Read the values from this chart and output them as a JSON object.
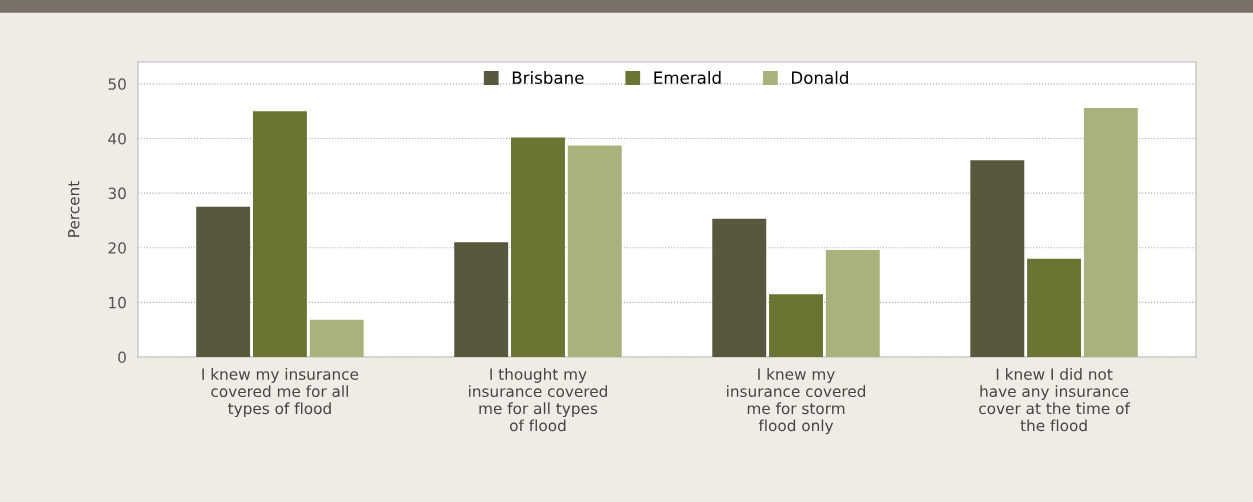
{
  "chart_data": {
    "type": "bar",
    "ylabel": "Percent",
    "categories": [
      "I knew my insurance\ncovered me for all\ntypes of flood",
      "I thought my\ninsurance covered\nme for all types\nof flood",
      "I knew my\ninsurance covered\nme for storm\nflood only",
      "I knew I did not\nhave any insurance\ncover at the time of\nthe flood"
    ],
    "series": [
      {
        "name": "Brisbane",
        "color": "#58583e",
        "values": [
          27.5,
          21,
          25.3,
          36
        ]
      },
      {
        "name": "Emerald",
        "color": "#6b7433",
        "values": [
          45,
          40.2,
          11.5,
          18
        ]
      },
      {
        "name": "Donald",
        "color": "#a9b27c",
        "values": [
          6.8,
          38.7,
          19.6,
          45.6
        ]
      }
    ],
    "ylim": [
      0,
      54
    ],
    "yticks": [
      0,
      10,
      20,
      30,
      40,
      50
    ],
    "grid": "y",
    "legend": "top"
  }
}
